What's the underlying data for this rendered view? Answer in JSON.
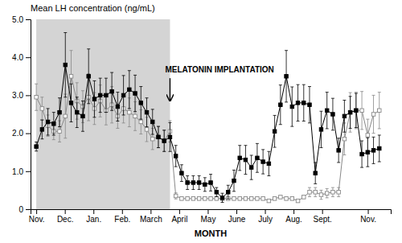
{
  "chart_data": {
    "type": "line",
    "title": "Mean LH concentration (ng/mL)",
    "xlabel": "MONTH",
    "grid": false,
    "xlim": [
      -1,
      62
    ],
    "xticks": [
      {
        "value": 0,
        "label": "Nov."
      },
      {
        "value": 5,
        "label": "Dec."
      },
      {
        "value": 10,
        "label": "Jan."
      },
      {
        "value": 15,
        "label": "Feb."
      },
      {
        "value": 20,
        "label": "March"
      },
      {
        "value": 25,
        "label": "April"
      },
      {
        "value": 30,
        "label": "May"
      },
      {
        "value": 35,
        "label": "June"
      },
      {
        "value": 40,
        "label": "July"
      },
      {
        "value": 45,
        "label": "Aug."
      },
      {
        "value": 50,
        "label": "Sept."
      },
      {
        "value": 58,
        "label": "Nov."
      }
    ],
    "ylim": [
      0,
      5.0
    ],
    "yticks": [
      0,
      {
        "value": 1.0,
        "label": "1.0"
      },
      {
        "value": 2.0,
        "label": "2.0"
      },
      {
        "value": 3.0,
        "label": "3.0"
      },
      {
        "value": 4.0,
        "label": "4.0"
      },
      {
        "value": 5.0,
        "label": "5.0"
      }
    ],
    "x": [
      0,
      1.016949,
      2.033898,
      3.050847,
      4.067797,
      5.084746,
      6.101695,
      7.118644,
      8.135593,
      9.152542,
      10.169492,
      11.186441,
      12.20339,
      13.220339,
      14.237288,
      15.254237,
      16.271186,
      17.288136,
      18.305085,
      19.322034,
      20.338983,
      21.355932,
      22.372881,
      23.389831,
      24.40678,
      25.423729,
      26.440678,
      27.457627,
      28.474576,
      29.491525,
      30.508475,
      31.525424,
      32.542373,
      33.559322,
      34.576271,
      35.59322,
      36.610169,
      37.627119,
      38.644068,
      39.661017,
      40.677966,
      41.694915,
      42.711864,
      43.728814,
      44.745763,
      45.762712,
      46.779661,
      47.79661,
      48.813559,
      49.830508,
      50.847458,
      51.864407,
      52.881356,
      53.898305,
      54.915254,
      55.932203,
      56.949153,
      57.966102,
      58.983051,
      60
    ],
    "series": [
      {
        "color": "#888888",
        "marker": "open-square",
        "line_style": "solid",
        "values": [
          2.95,
          2.65,
          2.2,
          2.05,
          2.05,
          2.45,
          3.5,
          2.85,
          2.7,
          2.95,
          2.65,
          2.85,
          2.6,
          2.75,
          2.45,
          2.65,
          2.55,
          2.45,
          2.3,
          2.1,
          1.85,
          1.9,
          1.8,
          2.05,
          0.35,
          0.28,
          0.28,
          0.28,
          0.28,
          0.28,
          0.28,
          0.28,
          0.28,
          0.28,
          0.28,
          0.28,
          0.28,
          0.28,
          0.28,
          0.28,
          0.22,
          0.28,
          0.32,
          0.28,
          0.28,
          0.22,
          0.32,
          0.45,
          0.45,
          0.38,
          0.42,
          0.45,
          0.45,
          1.85,
          2.55,
          2.6,
          2.6,
          1.95,
          2.5,
          2.6
        ],
        "errors": [
          0.35,
          0.3,
          0.28,
          0.22,
          0.28,
          0.58,
          0.68,
          0.48,
          0.42,
          0.62,
          0.42,
          0.42,
          0.38,
          0.48,
          0.32,
          0.38,
          0.38,
          0.38,
          0.32,
          0.32,
          0.28,
          0.28,
          0.28,
          0.28,
          0.08,
          0.04,
          0.04,
          0.04,
          0.04,
          0.04,
          0.04,
          0.04,
          0.04,
          0.04,
          0.04,
          0.04,
          0.04,
          0.04,
          0.04,
          0.04,
          0.04,
          0.04,
          0.04,
          0.04,
          0.04,
          0.04,
          0.04,
          0.12,
          0.12,
          0.12,
          0.12,
          0.12,
          0.12,
          0.42,
          0.52,
          0.48,
          0.5,
          0.42,
          0.5,
          0.48
        ]
      },
      {
        "color": "#000000",
        "marker": "filled-square",
        "line_style": "solid",
        "values": [
          1.65,
          2.1,
          2.3,
          2.25,
          2.55,
          3.8,
          2.8,
          2.55,
          2.45,
          3.5,
          2.9,
          3.0,
          3.0,
          3.1,
          2.7,
          3.0,
          3.15,
          3.05,
          2.8,
          2.55,
          2.3,
          1.9,
          1.8,
          1.9,
          1.4,
          0.95,
          0.7,
          0.7,
          0.7,
          0.65,
          0.7,
          0.45,
          0.3,
          0.45,
          0.75,
          1.35,
          1.3,
          1.1,
          1.35,
          1.25,
          1.2,
          2.05,
          2.75,
          3.5,
          2.7,
          2.8,
          2.8,
          2.75,
          0.95,
          2.1,
          2.6,
          2.5,
          1.55,
          2.45,
          2.55,
          2.6,
          1.45,
          1.5,
          1.55,
          1.6
        ],
        "errors": [
          0.12,
          0.25,
          0.35,
          0.3,
          0.38,
          0.85,
          0.5,
          0.4,
          0.4,
          0.72,
          0.48,
          0.45,
          0.45,
          0.5,
          0.38,
          0.52,
          0.5,
          0.48,
          0.43,
          0.38,
          0.33,
          0.28,
          0.28,
          0.38,
          0.28,
          0.22,
          0.18,
          0.18,
          0.18,
          0.18,
          0.22,
          0.12,
          0.12,
          0.18,
          0.28,
          0.33,
          0.38,
          0.32,
          0.38,
          0.32,
          0.32,
          0.42,
          0.52,
          0.68,
          0.52,
          0.48,
          0.48,
          0.48,
          0.28,
          0.48,
          0.48,
          0.42,
          0.32,
          0.42,
          0.42,
          0.45,
          0.35,
          0.38,
          0.35,
          0.35
        ]
      }
    ],
    "shade": {
      "start": 0,
      "end": 23.389831,
      "color": "#b0b0b0"
    },
    "annotation": {
      "text": "MELATONIN IMPLANTATION",
      "x": 23.389831,
      "y_from": 3.45,
      "y_to": 2.85
    }
  }
}
